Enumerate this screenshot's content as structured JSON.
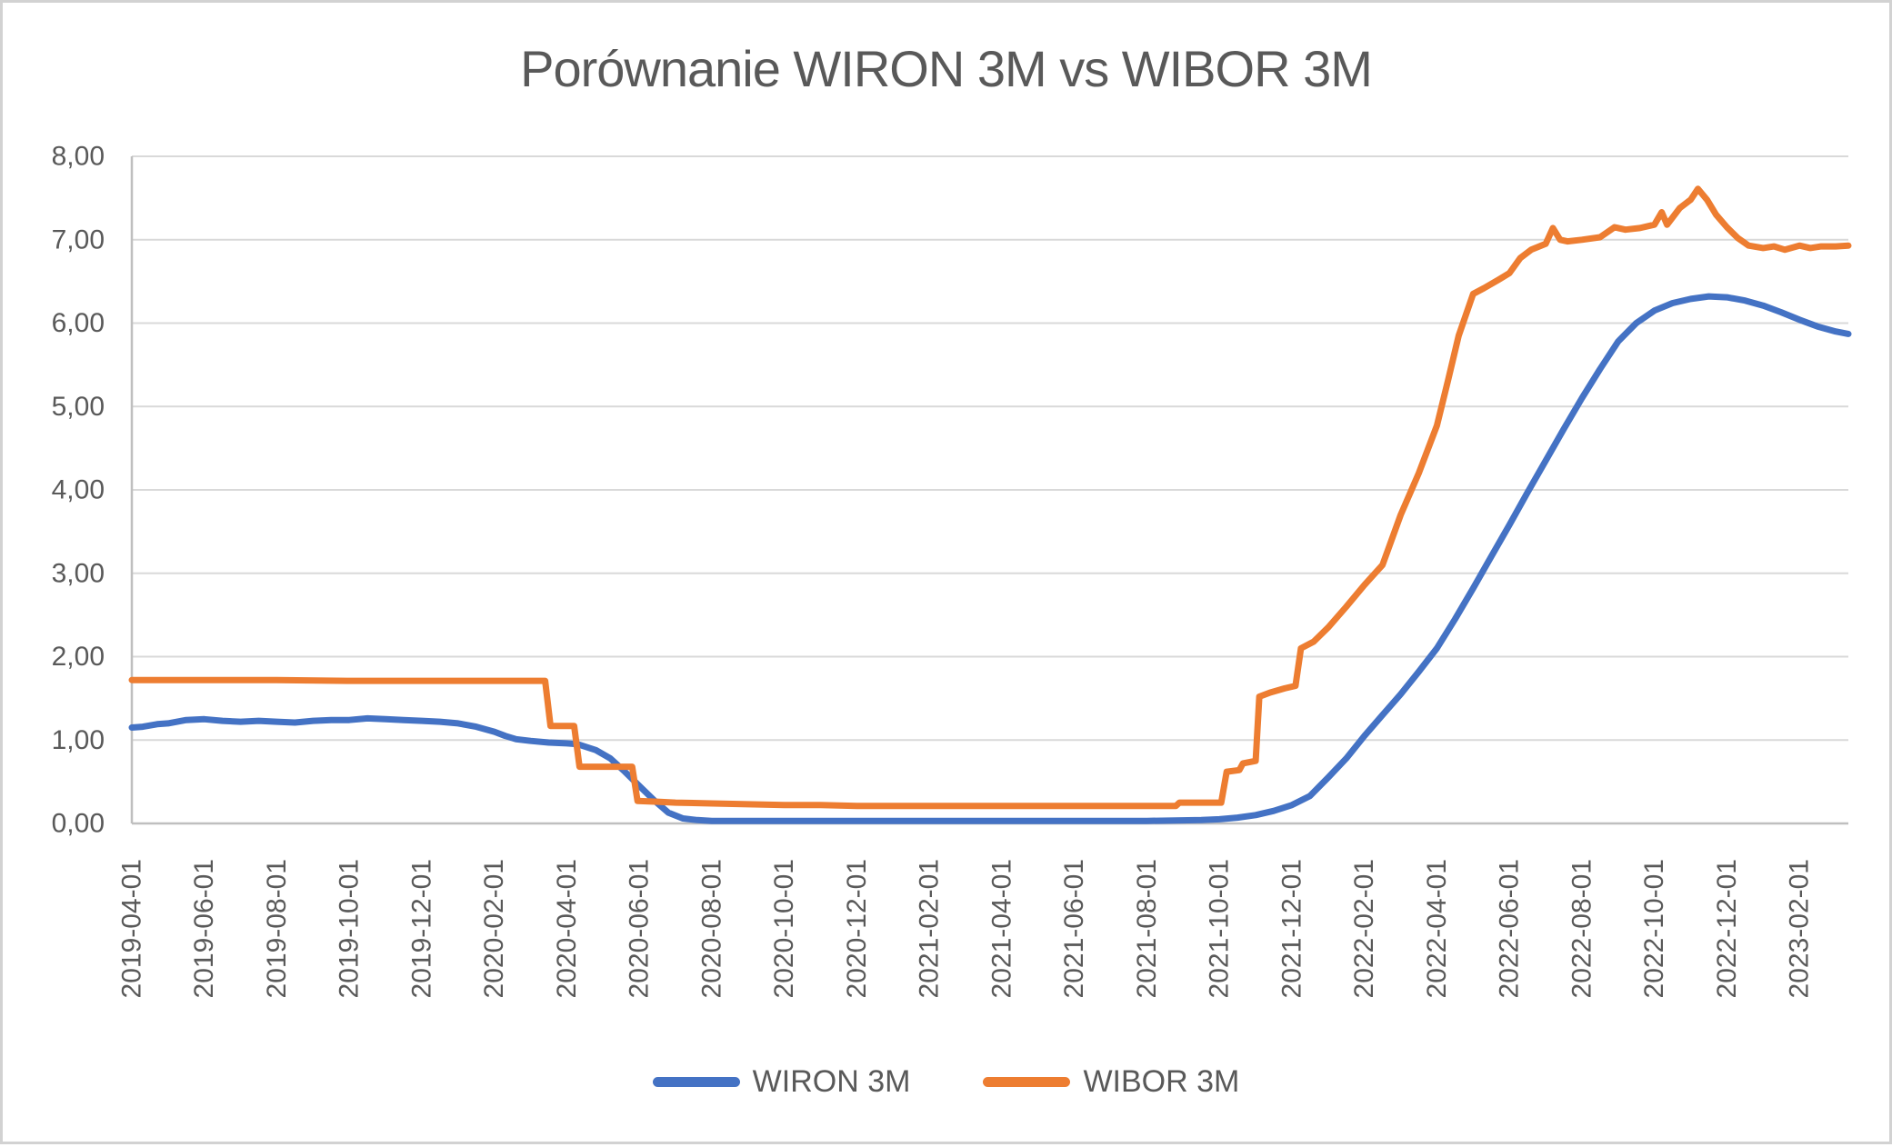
{
  "chart_data": {
    "type": "line",
    "title": "Porównanie WIRON 3M vs WIBOR 3M",
    "xlabel": "",
    "ylabel": "",
    "ylim": [
      0,
      8
    ],
    "x_months_range": [
      0,
      47.35
    ],
    "x_start_date": "2019-04-01",
    "x_tick_interval_months": 2,
    "grid": "horizontal",
    "legend_position": "bottom",
    "grid_color": "#D9D9D9",
    "axis_color": "#BFBFBF",
    "text_color": "#595959",
    "y_tick_values": [
      8,
      7,
      6,
      5,
      4,
      3,
      2,
      1,
      0
    ],
    "y_tick_labels": [
      "8,00",
      "7,00",
      "6,00",
      "5,00",
      "4,00",
      "3,00",
      "2,00",
      "1,00",
      "0,00"
    ],
    "x_tick_labels": [
      "2019-04-01",
      "2019-06-01",
      "2019-08-01",
      "2019-10-01",
      "2019-12-01",
      "2020-02-01",
      "2020-04-01",
      "2020-06-01",
      "2020-08-01",
      "2020-10-01",
      "2020-12-01",
      "2021-02-01",
      "2021-04-01",
      "2021-06-01",
      "2021-08-01",
      "2021-10-01",
      "2021-12-01",
      "2022-02-01",
      "2022-04-01",
      "2022-06-01",
      "2022-08-01",
      "2022-10-01",
      "2022-12-01",
      "2023-02-01"
    ],
    "series": [
      {
        "name": "WIRON 3M",
        "color": "#4472C4",
        "points_format": "[months_since_2019-04-01, rate_percent]",
        "points": [
          [
            0,
            1.15
          ],
          [
            0.3,
            1.16
          ],
          [
            0.7,
            1.19
          ],
          [
            1,
            1.2
          ],
          [
            1.5,
            1.24
          ],
          [
            2,
            1.25
          ],
          [
            2.5,
            1.23
          ],
          [
            3,
            1.22
          ],
          [
            3.5,
            1.23
          ],
          [
            4,
            1.22
          ],
          [
            4.5,
            1.21
          ],
          [
            5,
            1.23
          ],
          [
            5.5,
            1.24
          ],
          [
            6,
            1.24
          ],
          [
            6.5,
            1.26
          ],
          [
            7,
            1.25
          ],
          [
            7.5,
            1.24
          ],
          [
            8,
            1.23
          ],
          [
            8.5,
            1.22
          ],
          [
            9,
            1.2
          ],
          [
            9.5,
            1.16
          ],
          [
            10,
            1.1
          ],
          [
            10.3,
            1.05
          ],
          [
            10.6,
            1.01
          ],
          [
            11,
            0.99
          ],
          [
            11.5,
            0.97
          ],
          [
            12,
            0.96
          ],
          [
            12.3,
            0.95
          ],
          [
            12.8,
            0.88
          ],
          [
            13.2,
            0.78
          ],
          [
            13.6,
            0.62
          ],
          [
            14,
            0.45
          ],
          [
            14.4,
            0.28
          ],
          [
            14.8,
            0.13
          ],
          [
            15.2,
            0.06
          ],
          [
            15.6,
            0.04
          ],
          [
            16,
            0.03
          ],
          [
            18,
            0.03
          ],
          [
            20,
            0.03
          ],
          [
            22,
            0.03
          ],
          [
            24,
            0.03
          ],
          [
            26,
            0.03
          ],
          [
            28,
            0.03
          ],
          [
            29.5,
            0.04
          ],
          [
            30,
            0.05
          ],
          [
            30.5,
            0.07
          ],
          [
            31,
            0.1
          ],
          [
            31.5,
            0.15
          ],
          [
            32,
            0.22
          ],
          [
            32.5,
            0.33
          ],
          [
            33,
            0.55
          ],
          [
            33.5,
            0.78
          ],
          [
            34,
            1.05
          ],
          [
            34.5,
            1.3
          ],
          [
            35,
            1.55
          ],
          [
            35.5,
            1.82
          ],
          [
            36,
            2.1
          ],
          [
            36.5,
            2.45
          ],
          [
            37,
            2.82
          ],
          [
            37.5,
            3.2
          ],
          [
            38,
            3.58
          ],
          [
            38.5,
            3.97
          ],
          [
            39,
            4.35
          ],
          [
            39.5,
            4.73
          ],
          [
            40,
            5.1
          ],
          [
            40.5,
            5.45
          ],
          [
            41,
            5.78
          ],
          [
            41.5,
            6.0
          ],
          [
            42,
            6.15
          ],
          [
            42.5,
            6.24
          ],
          [
            43,
            6.29
          ],
          [
            43.5,
            6.32
          ],
          [
            44,
            6.31
          ],
          [
            44.5,
            6.27
          ],
          [
            45,
            6.21
          ],
          [
            45.5,
            6.13
          ],
          [
            46,
            6.04
          ],
          [
            46.5,
            5.96
          ],
          [
            47,
            5.9
          ],
          [
            47.35,
            5.87
          ]
        ]
      },
      {
        "name": "WIBOR 3M",
        "color": "#ED7D31",
        "points_format": "[months_since_2019-04-01, rate_percent]",
        "points": [
          [
            0,
            1.72
          ],
          [
            2,
            1.72
          ],
          [
            4,
            1.72
          ],
          [
            6,
            1.71
          ],
          [
            8,
            1.71
          ],
          [
            10,
            1.71
          ],
          [
            11.4,
            1.71
          ],
          [
            11.55,
            1.17
          ],
          [
            12.2,
            1.17
          ],
          [
            12.35,
            0.68
          ],
          [
            13.8,
            0.68
          ],
          [
            13.95,
            0.27
          ],
          [
            14.5,
            0.26
          ],
          [
            15,
            0.25
          ],
          [
            16,
            0.24
          ],
          [
            17,
            0.23
          ],
          [
            18,
            0.22
          ],
          [
            19,
            0.22
          ],
          [
            20,
            0.21
          ],
          [
            22,
            0.21
          ],
          [
            24,
            0.21
          ],
          [
            26,
            0.21
          ],
          [
            28,
            0.21
          ],
          [
            28.8,
            0.21
          ],
          [
            28.9,
            0.25
          ],
          [
            30.05,
            0.25
          ],
          [
            30.2,
            0.62
          ],
          [
            30.55,
            0.64
          ],
          [
            30.65,
            0.72
          ],
          [
            31.0,
            0.75
          ],
          [
            31.1,
            1.52
          ],
          [
            31.4,
            1.57
          ],
          [
            31.8,
            1.62
          ],
          [
            32.1,
            1.65
          ],
          [
            32.25,
            2.1
          ],
          [
            32.6,
            2.18
          ],
          [
            33,
            2.35
          ],
          [
            33.5,
            2.6
          ],
          [
            34,
            2.86
          ],
          [
            34.5,
            3.1
          ],
          [
            35,
            3.7
          ],
          [
            35.5,
            4.2
          ],
          [
            36,
            4.77
          ],
          [
            36.3,
            5.3
          ],
          [
            36.6,
            5.85
          ],
          [
            37,
            6.35
          ],
          [
            37.3,
            6.42
          ],
          [
            37.7,
            6.52
          ],
          [
            38,
            6.6
          ],
          [
            38.3,
            6.78
          ],
          [
            38.6,
            6.88
          ],
          [
            39,
            6.95
          ],
          [
            39.2,
            7.14
          ],
          [
            39.4,
            7.0
          ],
          [
            39.6,
            6.98
          ],
          [
            40,
            7.0
          ],
          [
            40.5,
            7.03
          ],
          [
            40.9,
            7.15
          ],
          [
            41.2,
            7.12
          ],
          [
            41.6,
            7.14
          ],
          [
            42,
            7.18
          ],
          [
            42.2,
            7.33
          ],
          [
            42.35,
            7.18
          ],
          [
            42.7,
            7.38
          ],
          [
            43,
            7.48
          ],
          [
            43.2,
            7.61
          ],
          [
            43.45,
            7.48
          ],
          [
            43.7,
            7.3
          ],
          [
            44,
            7.15
          ],
          [
            44.3,
            7.02
          ],
          [
            44.6,
            6.93
          ],
          [
            45,
            6.9
          ],
          [
            45.3,
            6.92
          ],
          [
            45.6,
            6.88
          ],
          [
            46,
            6.93
          ],
          [
            46.3,
            6.9
          ],
          [
            46.6,
            6.92
          ],
          [
            47,
            6.92
          ],
          [
            47.35,
            6.93
          ]
        ]
      }
    ]
  }
}
